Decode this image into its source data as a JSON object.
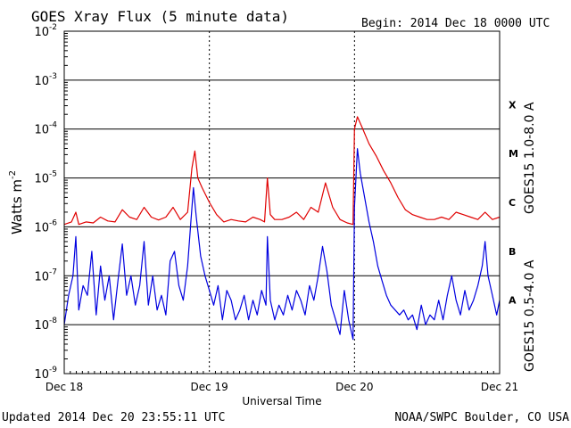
{
  "chart_data": {
    "type": "line",
    "title": "GOES Xray Flux (5 minute data)",
    "begin_label": "Begin:  2014 Dec 18 0000 UTC",
    "xlabel": "Universal Time",
    "ylabel": "Watts m",
    "ylabel_sup": "-2",
    "y_scale": "log",
    "ylim": [
      1e-09,
      0.01
    ],
    "xlim_days": [
      0,
      3
    ],
    "x_ticks": [
      {
        "day": 0,
        "label": "Dec 18"
      },
      {
        "day": 1,
        "label": "Dec 19"
      },
      {
        "day": 2,
        "label": "Dec 20"
      },
      {
        "day": 3,
        "label": "Dec 21"
      }
    ],
    "y_ticks": [
      {
        "exp": -2,
        "base": "10",
        "sup": "-2"
      },
      {
        "exp": -3,
        "base": "10",
        "sup": "-3"
      },
      {
        "exp": -4,
        "base": "10",
        "sup": "-4"
      },
      {
        "exp": -5,
        "base": "10",
        "sup": "-5"
      },
      {
        "exp": -6,
        "base": "10",
        "sup": "-6"
      },
      {
        "exp": -7,
        "base": "10",
        "sup": "-7"
      },
      {
        "exp": -8,
        "base": "10",
        "sup": "-8"
      },
      {
        "exp": -9,
        "base": "10",
        "sup": "-9"
      }
    ],
    "flare_classes": [
      {
        "label": "X",
        "exp": -3.5
      },
      {
        "label": "M",
        "exp": -4.5
      },
      {
        "label": "C",
        "exp": -5.5
      },
      {
        "label": "B",
        "exp": -6.5
      },
      {
        "label": "A",
        "exp": -7.5
      }
    ],
    "series": [
      {
        "name": "GOES15 1.0-8.0 A",
        "color": "#e00000",
        "points": [
          [
            0.0,
            -5.95
          ],
          [
            0.05,
            -5.9
          ],
          [
            0.08,
            -5.7
          ],
          [
            0.1,
            -5.95
          ],
          [
            0.15,
            -5.9
          ],
          [
            0.2,
            -5.92
          ],
          [
            0.25,
            -5.8
          ],
          [
            0.3,
            -5.88
          ],
          [
            0.35,
            -5.9
          ],
          [
            0.4,
            -5.65
          ],
          [
            0.45,
            -5.8
          ],
          [
            0.5,
            -5.85
          ],
          [
            0.55,
            -5.6
          ],
          [
            0.6,
            -5.8
          ],
          [
            0.65,
            -5.86
          ],
          [
            0.7,
            -5.8
          ],
          [
            0.75,
            -5.6
          ],
          [
            0.8,
            -5.85
          ],
          [
            0.85,
            -5.7
          ],
          [
            0.88,
            -4.8
          ],
          [
            0.9,
            -4.45
          ],
          [
            0.92,
            -5.0
          ],
          [
            0.95,
            -5.2
          ],
          [
            1.0,
            -5.5
          ],
          [
            1.05,
            -5.75
          ],
          [
            1.1,
            -5.9
          ],
          [
            1.15,
            -5.85
          ],
          [
            1.2,
            -5.88
          ],
          [
            1.25,
            -5.9
          ],
          [
            1.3,
            -5.8
          ],
          [
            1.35,
            -5.85
          ],
          [
            1.38,
            -5.9
          ],
          [
            1.4,
            -5.0
          ],
          [
            1.42,
            -5.75
          ],
          [
            1.45,
            -5.85
          ],
          [
            1.5,
            -5.85
          ],
          [
            1.55,
            -5.8
          ],
          [
            1.6,
            -5.7
          ],
          [
            1.65,
            -5.85
          ],
          [
            1.7,
            -5.6
          ],
          [
            1.75,
            -5.7
          ],
          [
            1.8,
            -5.1
          ],
          [
            1.85,
            -5.6
          ],
          [
            1.9,
            -5.85
          ],
          [
            1.95,
            -5.92
          ],
          [
            1.99,
            -5.95
          ],
          [
            2.0,
            -4.0
          ],
          [
            2.02,
            -3.75
          ],
          [
            2.05,
            -3.95
          ],
          [
            2.1,
            -4.3
          ],
          [
            2.15,
            -4.55
          ],
          [
            2.2,
            -4.85
          ],
          [
            2.25,
            -5.1
          ],
          [
            2.3,
            -5.4
          ],
          [
            2.35,
            -5.65
          ],
          [
            2.4,
            -5.75
          ],
          [
            2.45,
            -5.8
          ],
          [
            2.5,
            -5.85
          ],
          [
            2.55,
            -5.85
          ],
          [
            2.6,
            -5.8
          ],
          [
            2.65,
            -5.85
          ],
          [
            2.7,
            -5.7
          ],
          [
            2.75,
            -5.75
          ],
          [
            2.8,
            -5.8
          ],
          [
            2.85,
            -5.85
          ],
          [
            2.9,
            -5.7
          ],
          [
            2.95,
            -5.85
          ],
          [
            3.0,
            -5.8
          ]
        ]
      },
      {
        "name": "GOES15 0.5-4.0 A",
        "color": "#0000e0",
        "points": [
          [
            0.0,
            -8.0
          ],
          [
            0.03,
            -7.4
          ],
          [
            0.06,
            -7.0
          ],
          [
            0.08,
            -6.2
          ],
          [
            0.1,
            -7.7
          ],
          [
            0.13,
            -7.2
          ],
          [
            0.16,
            -7.4
          ],
          [
            0.19,
            -6.5
          ],
          [
            0.22,
            -7.8
          ],
          [
            0.25,
            -6.8
          ],
          [
            0.28,
            -7.5
          ],
          [
            0.31,
            -7.0
          ],
          [
            0.34,
            -7.9
          ],
          [
            0.37,
            -7.1
          ],
          [
            0.4,
            -6.35
          ],
          [
            0.43,
            -7.4
          ],
          [
            0.46,
            -7.0
          ],
          [
            0.49,
            -7.6
          ],
          [
            0.52,
            -7.2
          ],
          [
            0.55,
            -6.3
          ],
          [
            0.58,
            -7.6
          ],
          [
            0.61,
            -7.0
          ],
          [
            0.64,
            -7.7
          ],
          [
            0.67,
            -7.4
          ],
          [
            0.7,
            -7.8
          ],
          [
            0.73,
            -6.7
          ],
          [
            0.76,
            -6.5
          ],
          [
            0.79,
            -7.2
          ],
          [
            0.82,
            -7.5
          ],
          [
            0.85,
            -6.8
          ],
          [
            0.87,
            -6.0
          ],
          [
            0.89,
            -5.2
          ],
          [
            0.91,
            -5.8
          ],
          [
            0.94,
            -6.6
          ],
          [
            0.97,
            -7.0
          ],
          [
            1.0,
            -7.3
          ],
          [
            1.03,
            -7.6
          ],
          [
            1.06,
            -7.2
          ],
          [
            1.09,
            -7.9
          ],
          [
            1.12,
            -7.3
          ],
          [
            1.15,
            -7.5
          ],
          [
            1.18,
            -7.9
          ],
          [
            1.21,
            -7.7
          ],
          [
            1.24,
            -7.4
          ],
          [
            1.27,
            -7.9
          ],
          [
            1.3,
            -7.5
          ],
          [
            1.33,
            -7.8
          ],
          [
            1.36,
            -7.3
          ],
          [
            1.39,
            -7.6
          ],
          [
            1.4,
            -6.2
          ],
          [
            1.42,
            -7.5
          ],
          [
            1.45,
            -7.9
          ],
          [
            1.48,
            -7.6
          ],
          [
            1.51,
            -7.8
          ],
          [
            1.54,
            -7.4
          ],
          [
            1.57,
            -7.7
          ],
          [
            1.6,
            -7.3
          ],
          [
            1.63,
            -7.5
          ],
          [
            1.66,
            -7.8
          ],
          [
            1.69,
            -7.2
          ],
          [
            1.72,
            -7.5
          ],
          [
            1.75,
            -7.0
          ],
          [
            1.78,
            -6.4
          ],
          [
            1.81,
            -6.9
          ],
          [
            1.84,
            -7.6
          ],
          [
            1.87,
            -7.9
          ],
          [
            1.9,
            -8.2
          ],
          [
            1.93,
            -7.3
          ],
          [
            1.96,
            -7.9
          ],
          [
            1.99,
            -8.3
          ],
          [
            2.0,
            -5.6
          ],
          [
            2.02,
            -4.4
          ],
          [
            2.04,
            -4.9
          ],
          [
            2.07,
            -5.4
          ],
          [
            2.1,
            -5.9
          ],
          [
            2.13,
            -6.3
          ],
          [
            2.16,
            -6.8
          ],
          [
            2.19,
            -7.1
          ],
          [
            2.22,
            -7.4
          ],
          [
            2.25,
            -7.6
          ],
          [
            2.28,
            -7.7
          ],
          [
            2.31,
            -7.8
          ],
          [
            2.34,
            -7.7
          ],
          [
            2.37,
            -7.9
          ],
          [
            2.4,
            -7.8
          ],
          [
            2.43,
            -8.1
          ],
          [
            2.46,
            -7.6
          ],
          [
            2.49,
            -8.0
          ],
          [
            2.52,
            -7.8
          ],
          [
            2.55,
            -7.9
          ],
          [
            2.58,
            -7.5
          ],
          [
            2.61,
            -7.9
          ],
          [
            2.64,
            -7.4
          ],
          [
            2.67,
            -7.0
          ],
          [
            2.7,
            -7.5
          ],
          [
            2.73,
            -7.8
          ],
          [
            2.76,
            -7.3
          ],
          [
            2.79,
            -7.7
          ],
          [
            2.82,
            -7.5
          ],
          [
            2.85,
            -7.2
          ],
          [
            2.88,
            -6.8
          ],
          [
            2.9,
            -6.3
          ],
          [
            2.92,
            -7.0
          ],
          [
            2.95,
            -7.4
          ],
          [
            2.98,
            -7.8
          ],
          [
            3.0,
            -7.5
          ]
        ]
      }
    ]
  },
  "footer": {
    "updated": "Updated 2014 Dec 20 23:55:11 UTC",
    "credit": "NOAA/SWPC Boulder, CO USA"
  }
}
